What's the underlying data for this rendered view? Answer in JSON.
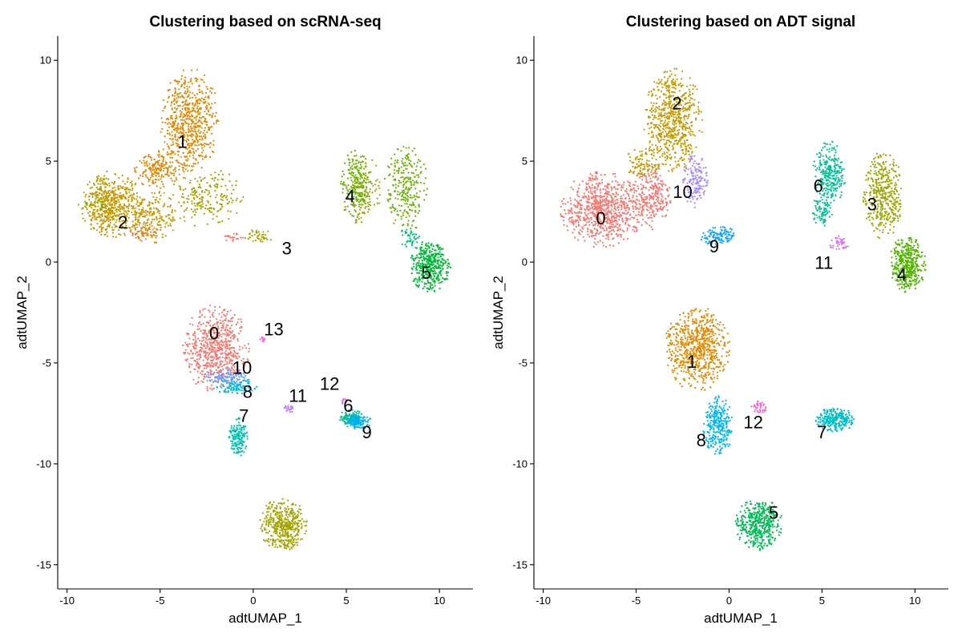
{
  "chart_data": [
    {
      "type": "scatter",
      "title": "Clustering based on scRNA-seq",
      "xlabel": "adtUMAP_1",
      "ylabel": "adtUMAP_2",
      "xlim": [
        -10.5,
        11.8
      ],
      "ylim": [
        -16.2,
        11.2
      ],
      "xticks": [
        -10,
        -5,
        0,
        5,
        10
      ],
      "yticks": [
        -15,
        -10,
        -5,
        0,
        5,
        10
      ],
      "xtick_labels": [
        "-10",
        "-5",
        "0",
        "5",
        "10"
      ],
      "ytick_labels": [
        "-15",
        "-10",
        "-5",
        "0",
        "5",
        "10"
      ],
      "legend": "none",
      "clusters": [
        {
          "label": "0",
          "color": "#F8766D",
          "label_x": -2.1,
          "label_y": -3.6,
          "regions": [
            {
              "cx": -2.0,
              "cy": -4.3,
              "rx": 1.8,
              "ry": 2.2,
              "n": 650
            },
            {
              "cx": -6.0,
              "cy": 1.5,
              "rx": 1.0,
              "ry": 0.5,
              "n": 40
            },
            {
              "cx": -1.0,
              "cy": 1.2,
              "rx": 0.6,
              "ry": 0.3,
              "n": 20
            }
          ]
        },
        {
          "label": "1",
          "color": "#E58700",
          "label_x": -3.8,
          "label_y": 5.9,
          "regions": [
            {
              "cx": -3.4,
              "cy": 7.0,
              "rx": 1.6,
              "ry": 2.6,
              "n": 600
            },
            {
              "cx": -5.0,
              "cy": 4.6,
              "rx": 1.4,
              "ry": 1.0,
              "n": 200
            }
          ]
        },
        {
          "label": "2",
          "color": "#C99800",
          "label_x": -7.0,
          "label_y": 1.9,
          "regions": [
            {
              "cx": -7.6,
              "cy": 2.8,
              "rx": 1.8,
              "ry": 1.6,
              "n": 550
            },
            {
              "cx": -5.4,
              "cy": 2.2,
              "rx": 1.3,
              "ry": 1.4,
              "n": 200
            }
          ]
        },
        {
          "label": "3",
          "color": "#A3A500",
          "label_x": 1.8,
          "label_y": 0.6,
          "regions": [
            {
              "cx": 1.6,
              "cy": -13.0,
              "rx": 1.3,
              "ry": 1.3,
              "n": 450
            },
            {
              "cx": -2.5,
              "cy": 3.2,
              "rx": 2.0,
              "ry": 1.5,
              "n": 200
            },
            {
              "cx": 0.3,
              "cy": 1.3,
              "rx": 0.9,
              "ry": 0.4,
              "n": 40
            },
            {
              "cx": 6.0,
              "cy": 3.5,
              "rx": 1.0,
              "ry": 1.8,
              "n": 100
            }
          ]
        },
        {
          "label": "4",
          "color": "#6BB100",
          "label_x": 5.2,
          "label_y": 3.2,
          "regions": [
            {
              "cx": 5.5,
              "cy": 3.8,
              "rx": 0.9,
              "ry": 1.8,
              "n": 220
            },
            {
              "cx": 8.2,
              "cy": 3.6,
              "rx": 1.2,
              "ry": 2.2,
              "n": 260
            },
            {
              "cx": -8.2,
              "cy": 3.2,
              "rx": 1.0,
              "ry": 1.4,
              "n": 40
            }
          ]
        },
        {
          "label": "5",
          "color": "#00BA38",
          "label_x": 9.3,
          "label_y": -0.6,
          "regions": [
            {
              "cx": 9.5,
              "cy": -0.2,
              "rx": 1.1,
              "ry": 1.3,
              "n": 420
            }
          ]
        },
        {
          "label": "6",
          "color": "#00BF7D",
          "label_x": 5.1,
          "label_y": -7.2,
          "regions": [
            {
              "cx": 5.3,
              "cy": -7.7,
              "rx": 0.7,
              "ry": 0.4,
              "n": 100
            },
            {
              "cx": 8.4,
              "cy": 1.2,
              "rx": 0.6,
              "ry": 0.5,
              "n": 40
            }
          ]
        },
        {
          "label": "7",
          "color": "#00C0AF",
          "label_x": -0.5,
          "label_y": -7.7,
          "regions": [
            {
              "cx": -0.8,
              "cy": -8.7,
              "rx": 0.5,
              "ry": 1.0,
              "n": 150
            }
          ]
        },
        {
          "label": "8",
          "color": "#00BCD8",
          "label_x": -0.3,
          "label_y": -6.5,
          "regions": [
            {
              "cx": -1.0,
              "cy": -6.2,
              "rx": 1.2,
              "ry": 0.4,
              "n": 90
            }
          ]
        },
        {
          "label": "9",
          "color": "#00B0F6",
          "label_x": 6.1,
          "label_y": -8.5,
          "regions": [
            {
              "cx": 5.6,
              "cy": -7.9,
              "rx": 0.8,
              "ry": 0.4,
              "n": 130
            }
          ]
        },
        {
          "label": "10",
          "color": "#619CFF",
          "label_x": -0.6,
          "label_y": -5.3,
          "regions": [
            {
              "cx": -1.4,
              "cy": -5.7,
              "rx": 1.3,
              "ry": 0.4,
              "n": 100
            }
          ]
        },
        {
          "label": "11",
          "color": "#B983FF",
          "label_x": 2.4,
          "label_y": -6.7,
          "regions": [
            {
              "cx": 1.9,
              "cy": -7.3,
              "rx": 0.4,
              "ry": 0.2,
              "n": 20
            }
          ]
        },
        {
          "label": "12",
          "color": "#E76BF3",
          "label_x": 4.1,
          "label_y": -6.1,
          "regions": [
            {
              "cx": 4.9,
              "cy": -6.9,
              "rx": 0.2,
              "ry": 0.2,
              "n": 12
            }
          ]
        },
        {
          "label": "13",
          "color": "#FD61D1",
          "label_x": 1.1,
          "label_y": -3.4,
          "regions": [
            {
              "cx": 0.5,
              "cy": -3.8,
              "rx": 0.2,
              "ry": 0.2,
              "n": 10
            }
          ]
        }
      ]
    },
    {
      "type": "scatter",
      "title": "Clustering based on ADT signal",
      "xlabel": "adtUMAP_1",
      "ylabel": "adtUMAP_2",
      "xlim": [
        -10.5,
        11.8
      ],
      "ylim": [
        -16.2,
        11.2
      ],
      "xticks": [
        -10,
        -5,
        0,
        5,
        10
      ],
      "yticks": [
        -15,
        -10,
        -5,
        0,
        5,
        10
      ],
      "xtick_labels": [
        "-10",
        "-5",
        "0",
        "5",
        "10"
      ],
      "ytick_labels": [
        "-15",
        "-10",
        "-5",
        "0",
        "5",
        "10"
      ],
      "legend": "none",
      "clusters": [
        {
          "label": "0",
          "color": "#F8766D",
          "label_x": -6.9,
          "label_y": 2.1,
          "regions": [
            {
              "cx": -6.8,
              "cy": 2.6,
              "rx": 2.3,
              "ry": 1.9,
              "n": 750
            },
            {
              "cx": -4.2,
              "cy": 3.2,
              "rx": 1.2,
              "ry": 1.6,
              "n": 250
            }
          ]
        },
        {
          "label": "1",
          "color": "#E38900",
          "label_x": -2.0,
          "label_y": -5.0,
          "regions": [
            {
              "cx": -1.7,
              "cy": -4.3,
              "rx": 1.8,
              "ry": 2.1,
              "n": 700
            }
          ]
        },
        {
          "label": "2",
          "color": "#C49A00",
          "label_x": -2.8,
          "label_y": 7.8,
          "regions": [
            {
              "cx": -3.0,
              "cy": 7.0,
              "rx": 1.6,
              "ry": 2.6,
              "n": 650
            },
            {
              "cx": -4.6,
              "cy": 4.9,
              "rx": 1.0,
              "ry": 0.8,
              "n": 100
            }
          ]
        },
        {
          "label": "3",
          "color": "#99A800",
          "label_x": 7.7,
          "label_y": 2.8,
          "regions": [
            {
              "cx": 8.3,
              "cy": 3.3,
              "rx": 1.1,
              "ry": 2.2,
              "n": 420
            }
          ]
        },
        {
          "label": "4",
          "color": "#53B400",
          "label_x": 9.3,
          "label_y": -0.7,
          "regions": [
            {
              "cx": 9.6,
              "cy": -0.1,
              "rx": 1.0,
              "ry": 1.4,
              "n": 420
            }
          ]
        },
        {
          "label": "5",
          "color": "#00BC56",
          "label_x": 2.4,
          "label_y": -12.5,
          "regions": [
            {
              "cx": 1.6,
              "cy": -13.0,
              "rx": 1.3,
              "ry": 1.3,
              "n": 450
            }
          ]
        },
        {
          "label": "6",
          "color": "#00C094",
          "label_x": 4.8,
          "label_y": 3.7,
          "regions": [
            {
              "cx": 5.4,
              "cy": 4.4,
              "rx": 0.9,
              "ry": 1.6,
              "n": 280
            },
            {
              "cx": 5.0,
              "cy": 2.5,
              "rx": 0.6,
              "ry": 0.8,
              "n": 80
            }
          ]
        },
        {
          "label": "7",
          "color": "#00BFC4",
          "label_x": 5.0,
          "label_y": -8.5,
          "regions": [
            {
              "cx": 5.7,
              "cy": -7.8,
              "rx": 1.1,
              "ry": 0.6,
              "n": 250
            }
          ]
        },
        {
          "label": "8",
          "color": "#00B6EB",
          "label_x": -1.5,
          "label_y": -8.9,
          "regions": [
            {
              "cx": -0.6,
              "cy": -8.1,
              "rx": 0.8,
              "ry": 1.5,
              "n": 280
            }
          ]
        },
        {
          "label": "9",
          "color": "#06A4FF",
          "label_x": -0.8,
          "label_y": 0.7,
          "regions": [
            {
              "cx": -0.6,
              "cy": 1.3,
              "rx": 1.0,
              "ry": 0.5,
              "n": 110
            }
          ]
        },
        {
          "label": "10",
          "color": "#A58AFF",
          "label_x": -2.5,
          "label_y": 3.4,
          "regions": [
            {
              "cx": -1.8,
              "cy": 4.0,
              "rx": 0.7,
              "ry": 1.4,
              "n": 150
            }
          ]
        },
        {
          "label": "11",
          "color": "#DF70F8",
          "label_x": 5.1,
          "label_y": -0.1,
          "regions": [
            {
              "cx": 6.0,
              "cy": 0.9,
              "rx": 0.6,
              "ry": 0.4,
              "n": 40
            }
          ]
        },
        {
          "label": "12",
          "color": "#FB61D7",
          "label_x": 1.3,
          "label_y": -8.0,
          "regions": [
            {
              "cx": 1.6,
              "cy": -7.2,
              "rx": 0.5,
              "ry": 0.3,
              "n": 40
            }
          ]
        }
      ]
    }
  ]
}
